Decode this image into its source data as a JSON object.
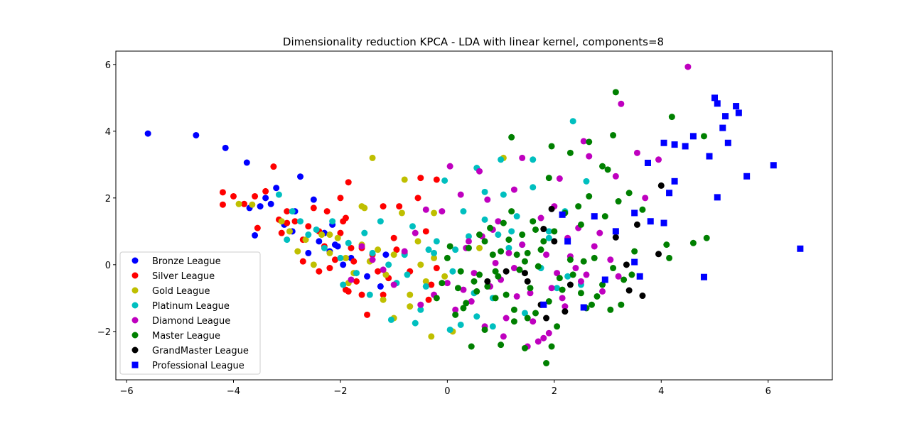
{
  "chart_data": {
    "type": "scatter",
    "title": "Dimensionality reduction KPCA - LDA with linear kernel, components=8",
    "xlabel": "",
    "ylabel": "",
    "xlim": [
      -6.2,
      7.2
    ],
    "ylim": [
      -3.45,
      6.4
    ],
    "xticks": [
      -6,
      -4,
      -2,
      0,
      2,
      4,
      6
    ],
    "yticks": [
      -2,
      0,
      2,
      4,
      6
    ],
    "xtick_labels": [
      "−6",
      "−4",
      "−2",
      "0",
      "2",
      "4",
      "6"
    ],
    "ytick_labels": [
      "−2",
      "0",
      "2",
      "4",
      "6"
    ],
    "grid": false,
    "legend_position": "lower-left",
    "series": [
      {
        "name": "Bronze League",
        "color": "#0000ff",
        "marker": "circle",
        "x": [
          -5.6,
          -4.7,
          -4.15,
          -3.75,
          -2.75,
          -3.4,
          -3.2,
          -3.6,
          -3.3,
          -2.5,
          -2.9,
          -2.6,
          -3.05,
          -2.4,
          -2.2,
          -2.85,
          -2.3,
          -2.05,
          -1.95,
          -1.5,
          -1.25,
          -1.8,
          -1.15,
          -3.5,
          -2.15,
          -2.1,
          -3.7
        ],
        "y": [
          3.93,
          3.88,
          3.5,
          3.06,
          2.64,
          2.0,
          2.3,
          0.88,
          1.82,
          1.95,
          1.0,
          0.35,
          1.2,
          0.7,
          0.4,
          1.6,
          0.95,
          0.55,
          0.0,
          -0.35,
          -0.65,
          0.2,
          0.3,
          1.75,
          1.2,
          0.6,
          1.7
        ]
      },
      {
        "name": "Silver League",
        "color": "#ff0000",
        "marker": "circle",
        "x": [
          -4.2,
          -4.2,
          -4.0,
          -3.8,
          -3.6,
          -3.55,
          -3.4,
          -3.25,
          -3.1,
          -3.0,
          -2.85,
          -2.7,
          -2.6,
          -2.5,
          -2.4,
          -2.3,
          -2.2,
          -2.1,
          -2.0,
          -1.9,
          -1.8,
          -1.7,
          -1.6,
          -1.5,
          -1.4,
          -1.3,
          -1.2,
          -1.1,
          -1.0,
          -0.9,
          -0.8,
          -0.7,
          -0.5,
          -0.4,
          -0.3,
          -0.2,
          -2.25,
          -2.0,
          -1.95,
          -1.85,
          -1.75,
          -1.9,
          -1.2,
          -0.95,
          -0.55,
          -0.2,
          -0.35,
          -1.6,
          -3.0,
          -2.4,
          -3.15,
          -1.85,
          -2.7
        ],
        "y": [
          2.17,
          1.8,
          2.05,
          1.82,
          2.05,
          1.1,
          2.2,
          2.94,
          0.95,
          1.6,
          1.3,
          0.75,
          1.15,
          1.7,
          1.0,
          0.55,
          -0.1,
          0.15,
          2.0,
          1.4,
          0.5,
          -0.5,
          -0.9,
          -1.5,
          0.3,
          -0.2,
          -0.9,
          -0.4,
          0.8,
          1.75,
          0.35,
          -0.2,
          2.6,
          1.0,
          -0.6,
          2.55,
          1.6,
          0.95,
          1.3,
          2.47,
          0.1,
          -0.75,
          1.75,
          0.45,
          2.0,
          -0.1,
          -1.05,
          0.5,
          1.25,
          -0.2,
          1.35,
          -0.8,
          0.1
        ]
      },
      {
        "name": "Gold League",
        "color": "#bfbf00",
        "marker": "circle",
        "x": [
          -3.9,
          -3.65,
          -3.1,
          -2.95,
          -2.8,
          -2.65,
          -2.5,
          -2.35,
          -2.2,
          -2.05,
          -1.9,
          -1.75,
          -1.6,
          -1.45,
          -1.3,
          -1.15,
          -1.0,
          -0.85,
          -0.7,
          -0.55,
          -0.4,
          -0.25,
          -1.4,
          -0.8,
          -0.3,
          -0.25,
          1.05,
          0.1,
          -1.55,
          -1.6,
          -1.0,
          -2.2,
          -1.85,
          -0.7,
          -1.2,
          -0.5,
          0.6,
          -0.05
        ],
        "y": [
          1.82,
          1.8,
          1.3,
          1.0,
          0.4,
          0.75,
          0.0,
          0.9,
          0.35,
          0.8,
          0.2,
          -0.25,
          0.6,
          0.1,
          0.45,
          -0.3,
          0.3,
          1.55,
          -0.9,
          0.7,
          -0.5,
          0.2,
          3.2,
          2.55,
          -2.15,
          1.55,
          3.2,
          -2.0,
          1.7,
          1.75,
          -1.6,
          0.9,
          -0.55,
          -1.25,
          -1.05,
          0.0,
          0.5,
          -0.35
        ]
      },
      {
        "name": "Platinum League",
        "color": "#00bfbf",
        "marker": "circle",
        "x": [
          -3.15,
          -3.0,
          -2.9,
          -2.75,
          -2.6,
          -2.45,
          -2.3,
          -2.15,
          -2.0,
          -1.85,
          -1.7,
          -1.55,
          -1.4,
          -1.25,
          -1.1,
          -0.95,
          -0.8,
          -0.65,
          -0.5,
          -0.35,
          -0.2,
          -0.05,
          0.1,
          0.25,
          0.4,
          0.55,
          0.7,
          0.85,
          1.0,
          1.15,
          1.3,
          1.45,
          1.6,
          1.75,
          1.9,
          2.05,
          2.2,
          2.35,
          2.5,
          2.25,
          1.6,
          1.05,
          0.7,
          0.5,
          0.05,
          -0.4,
          0.3,
          0.85,
          1.2,
          2.6,
          -1.95,
          -1.45,
          -1.05,
          -0.75,
          0.15,
          0.55,
          1.9,
          1.4,
          -0.6,
          -0.25,
          0.95
        ],
        "y": [
          2.1,
          0.75,
          1.6,
          1.3,
          0.9,
          1.05,
          0.5,
          1.3,
          0.2,
          0.65,
          -0.25,
          0.95,
          0.35,
          1.3,
          0.0,
          -0.55,
          0.3,
          1.15,
          -1.35,
          0.45,
          0.7,
          2.52,
          -0.2,
          -1.8,
          0.85,
          2.9,
          1.35,
          -1.85,
          3.15,
          0.5,
          1.45,
          -1.45,
          2.32,
          -0.1,
          1.0,
          -0.7,
          1.6,
          4.3,
          -0.6,
          -0.35,
          3.15,
          2.1,
          2.18,
          -0.85,
          -1.95,
          -0.65,
          1.6,
          -1.0,
          1.0,
          2.5,
          -0.6,
          -0.9,
          -1.65,
          -0.3,
          0.45,
          -1.55,
          0.8,
          0.6,
          -1.75,
          0.35,
          0.9
        ]
      },
      {
        "name": "Diamond League",
        "color": "#bf00bf",
        "marker": "circle",
        "x": [
          4.5,
          3.25,
          3.95,
          3.55,
          3.15,
          2.65,
          2.55,
          2.1,
          1.4,
          1.25,
          0.6,
          0.25,
          0.05,
          -0.1,
          -0.4,
          -0.6,
          -0.8,
          -1.0,
          -1.2,
          -1.4,
          -1.6,
          -1.8,
          -0.25,
          0.15,
          0.35,
          0.5,
          0.65,
          0.8,
          0.95,
          1.1,
          1.25,
          1.4,
          1.55,
          1.7,
          1.85,
          2.0,
          2.15,
          2.3,
          2.45,
          2.6,
          2.75,
          2.9,
          3.05,
          3.2,
          0.7,
          1.0,
          1.3,
          1.6,
          1.9,
          2.2,
          2.5,
          1.05,
          1.35,
          0.45,
          0.75,
          0.0,
          -0.5,
          0.9,
          1.95,
          1.5,
          2.85,
          3.7,
          0.4,
          1.75,
          2.05,
          2.25,
          0.3,
          1.15,
          0.85,
          1.8,
          2.4
        ],
        "y": [
          5.93,
          4.82,
          3.15,
          3.35,
          2.65,
          3.25,
          3.7,
          2.58,
          3.2,
          2.25,
          2.8,
          2.1,
          2.95,
          1.6,
          1.65,
          0.95,
          0.4,
          -0.6,
          -0.15,
          0.15,
          0.55,
          -0.45,
          -0.9,
          -1.35,
          0.5,
          -0.25,
          0.85,
          -0.65,
          1.3,
          -1.6,
          -0.1,
          0.6,
          -0.85,
          -2.3,
          0.3,
          1.75,
          -1.0,
          0.25,
          1.1,
          -0.3,
          0.55,
          -0.8,
          0.15,
          -0.35,
          -1.85,
          -0.45,
          -0.95,
          -1.7,
          -2.05,
          -1.25,
          -0.5,
          -2.15,
          -0.15,
          -1.1,
          1.95,
          -0.55,
          -1.2,
          0.05,
          -0.7,
          -2.45,
          0.95,
          2.0,
          0.7,
          1.4,
          -0.25,
          0.8,
          -0.75,
          0.35,
          1.05,
          -2.2,
          -0.1
        ]
      },
      {
        "name": "Master League",
        "color": "#008000",
        "marker": "circle",
        "x": [
          3.15,
          4.2,
          4.8,
          4.6,
          4.85,
          3.1,
          2.65,
          2.3,
          1.95,
          1.2,
          2.65,
          2.9,
          3.4,
          3.0,
          3.65,
          4.15,
          4.1,
          2.95,
          2.5,
          2.2,
          2.0,
          1.8,
          1.6,
          1.4,
          1.2,
          1.0,
          0.8,
          0.6,
          0.4,
          0.2,
          0.0,
          -0.2,
          0.3,
          0.5,
          0.7,
          0.9,
          1.1,
          1.3,
          1.5,
          1.7,
          1.9,
          2.1,
          2.3,
          2.5,
          2.7,
          2.9,
          3.1,
          3.3,
          3.5,
          1.85,
          1.95,
          1.45,
          1.0,
          0.45,
          0.7,
          1.25,
          1.65,
          2.05,
          2.6,
          3.25,
          3.05,
          2.8,
          0.15,
          0.9,
          1.55,
          2.35,
          2.75,
          3.45,
          0.6,
          1.05,
          1.35,
          1.75,
          0.25,
          0.85,
          1.15,
          1.5,
          2.15,
          2.45,
          0.05,
          0.55,
          0.95,
          1.65,
          -0.1,
          0.35,
          1.25,
          1.9,
          2.55,
          3.2,
          0.75,
          1.45
        ],
        "y": [
          5.17,
          4.43,
          3.85,
          0.65,
          0.8,
          3.88,
          3.68,
          3.35,
          3.55,
          3.82,
          2.05,
          2.95,
          2.15,
          2.85,
          1.65,
          0.2,
          0.6,
          1.45,
          1.2,
          1.55,
          1.0,
          0.7,
          1.3,
          0.9,
          1.6,
          0.4,
          1.1,
          -0.3,
          0.5,
          -0.7,
          0.2,
          -1.0,
          -1.3,
          -0.5,
          0.7,
          -0.2,
          -0.9,
          0.3,
          -1.6,
          -0.05,
          -1.1,
          -0.4,
          0.15,
          -0.85,
          -1.2,
          -0.6,
          -0.1,
          -0.45,
          0.4,
          -2.95,
          -2.45,
          -2.5,
          -2.4,
          -2.45,
          -1.95,
          -1.7,
          -1.45,
          -1.85,
          -1.3,
          -1.2,
          -1.35,
          -0.95,
          -1.5,
          -1.0,
          -0.7,
          -0.3,
          0.2,
          -0.3,
          0.9,
          1.25,
          -0.15,
          0.45,
          -0.2,
          0.3,
          0.75,
          0.35,
          -0.75,
          1.75,
          0.55,
          -0.8,
          -0.35,
          1.05,
          -0.55,
          -1.15,
          -1.35,
          2.6,
          0.1,
          1.9,
          -0.65,
          0.1
        ]
      },
      {
        "name": "GrandMaster League",
        "color": "#000000",
        "marker": "circle",
        "x": [
          4.0,
          3.95,
          3.15,
          3.55,
          3.4,
          3.65,
          3.35,
          1.95,
          1.85,
          1.5,
          1.1,
          1.8,
          2.2,
          2.3,
          0.75,
          1.45,
          2.0,
          1.75
        ],
        "y": [
          2.37,
          0.32,
          0.82,
          1.2,
          -0.77,
          -0.93,
          0.0,
          1.67,
          -1.6,
          -0.5,
          -0.2,
          1.07,
          -1.4,
          -0.6,
          -0.5,
          -0.25,
          0.7,
          -1.2
        ],
        "note": ""
      },
      {
        "name": "Professional League",
        "color": "#0000ff",
        "marker": "square",
        "x": [
          5.0,
          5.05,
          5.4,
          5.45,
          5.2,
          5.15,
          5.25,
          4.6,
          4.45,
          4.05,
          4.25,
          3.75,
          3.8,
          4.15,
          4.25,
          4.9,
          5.05,
          5.6,
          6.1,
          6.6,
          4.8,
          3.5,
          3.6,
          3.15,
          2.95,
          2.75,
          2.25,
          2.15,
          1.8,
          2.55,
          4.05,
          3.5
        ],
        "y": [
          5.0,
          4.83,
          4.75,
          4.55,
          4.45,
          4.1,
          3.65,
          3.85,
          3.55,
          3.65,
          3.6,
          3.05,
          1.3,
          2.15,
          2.5,
          3.25,
          2.02,
          2.65,
          2.98,
          0.48,
          -0.37,
          1.55,
          -0.35,
          1.0,
          -0.45,
          1.45,
          0.7,
          1.5,
          -1.2,
          -1.28,
          1.25,
          0.08
        ]
      }
    ]
  }
}
